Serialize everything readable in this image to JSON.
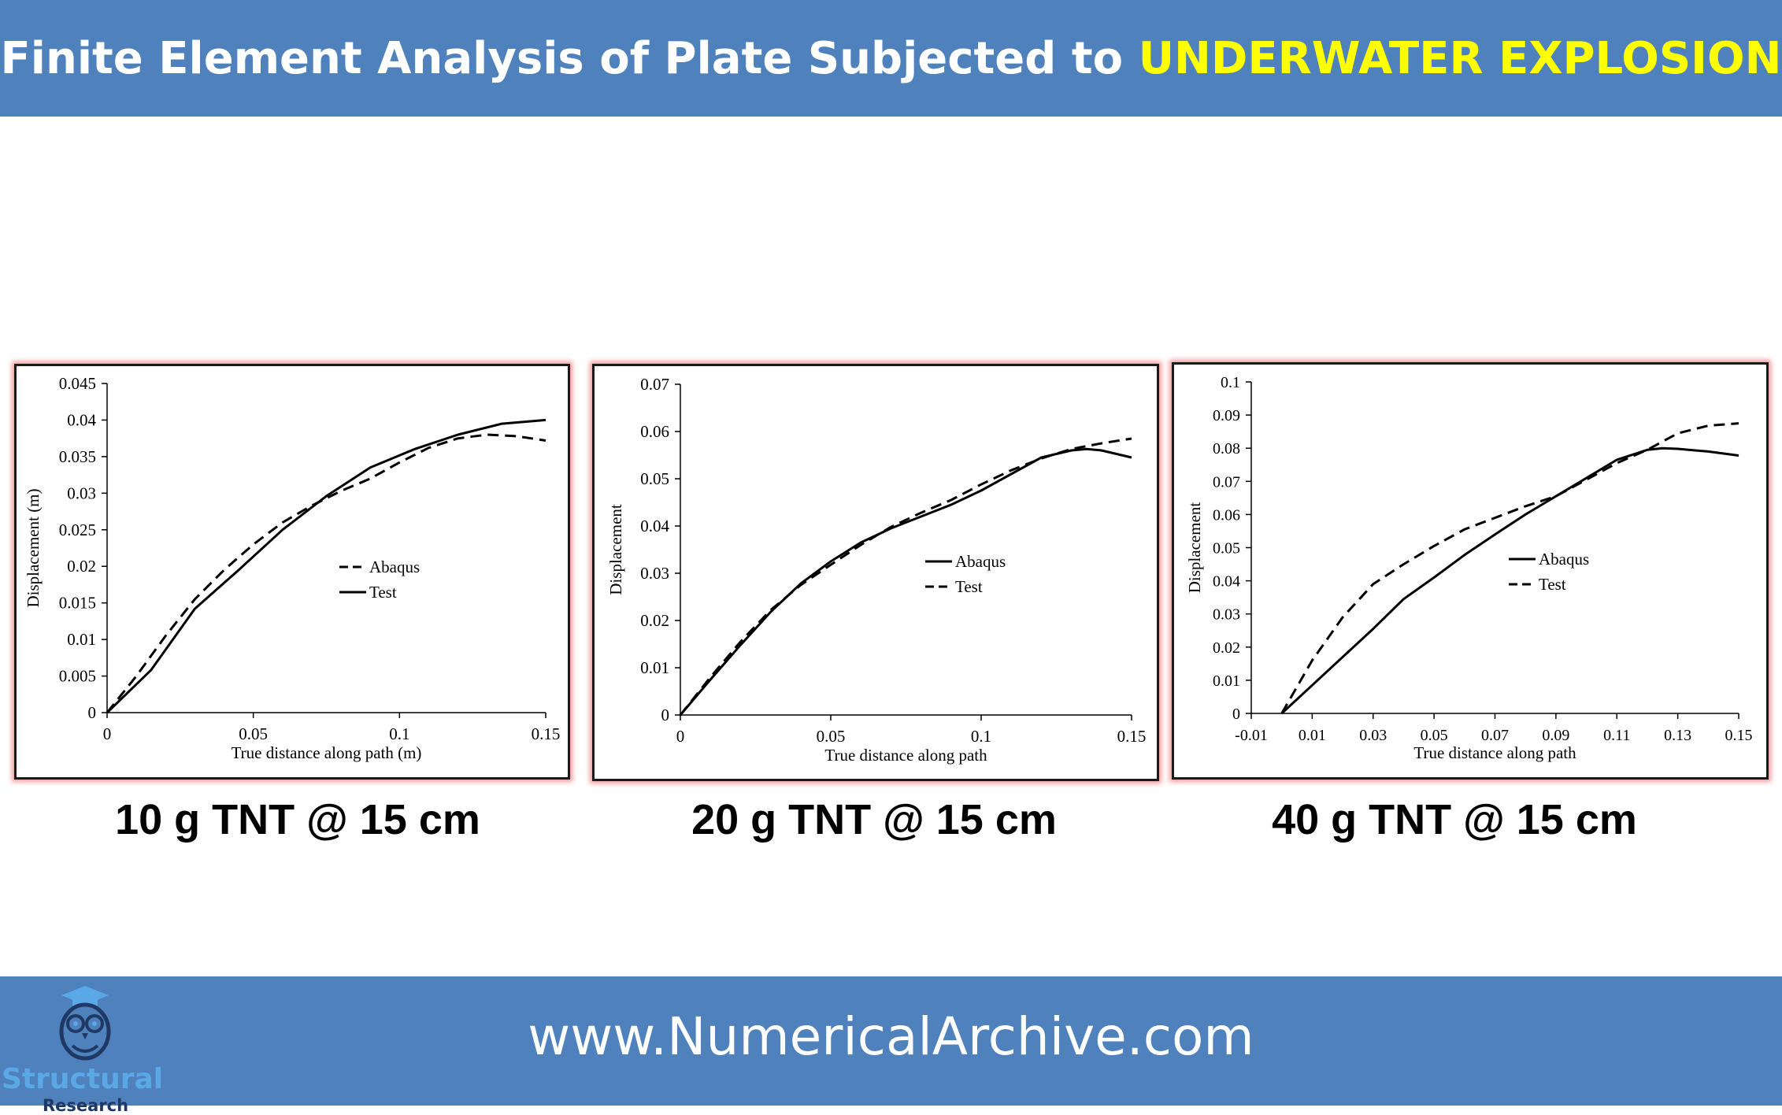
{
  "header": {
    "title_part1": "Finite Element Analysis of Plate Subjected to ",
    "title_part2": "UNDERWATER EXPLOSION",
    "bg_color": "#4f81bd",
    "highlight_color": "#ffff00"
  },
  "footer": {
    "url": "www.NumericalArchive.com",
    "logo_text": "Structural",
    "logo_subtext": "Research",
    "logo_icon": "owl-graduate-icon"
  },
  "captions": [
    "10 g TNT @ 15 cm",
    "20 g TNT @ 15 cm",
    "40 g TNT @ 15 cm"
  ],
  "chart_data": [
    {
      "type": "line",
      "title": "",
      "xlabel": "True distance along path (m)",
      "ylabel": "Displacement (m)",
      "xlim": [
        0,
        0.15
      ],
      "ylim": [
        0,
        0.045
      ],
      "xticks": [
        "0",
        "0.05",
        "0.1",
        "0.15"
      ],
      "xtick_values": [
        0,
        0.05,
        0.1,
        0.15
      ],
      "yticks": [
        "0",
        "0.005",
        "0.01",
        "0.015",
        "0.02",
        "0.025",
        "0.03",
        "0.035",
        "0.04",
        "0.045"
      ],
      "ytick_values": [
        0,
        0.005,
        0.01,
        0.015,
        0.02,
        0.025,
        0.03,
        0.035,
        0.04,
        0.045
      ],
      "legend_position": "right",
      "legend": [
        "Abaqus",
        "Test"
      ],
      "series": [
        {
          "name": "Abaqus",
          "style": "dashed",
          "x": [
            0,
            0.01,
            0.02,
            0.03,
            0.04,
            0.05,
            0.06,
            0.07,
            0.08,
            0.09,
            0.1,
            0.11,
            0.12,
            0.13,
            0.14,
            0.15
          ],
          "y": [
            0,
            0.005,
            0.0105,
            0.0155,
            0.0195,
            0.023,
            0.026,
            0.0283,
            0.0303,
            0.032,
            0.0342,
            0.0362,
            0.0375,
            0.038,
            0.0378,
            0.0372
          ]
        },
        {
          "name": "Test",
          "style": "solid",
          "x": [
            0,
            0.015,
            0.03,
            0.045,
            0.06,
            0.075,
            0.09,
            0.105,
            0.12,
            0.135,
            0.15
          ],
          "y": [
            0,
            0.0058,
            0.0142,
            0.0195,
            0.025,
            0.0296,
            0.0335,
            0.036,
            0.038,
            0.0395,
            0.04
          ]
        }
      ]
    },
    {
      "type": "line",
      "title": "",
      "xlabel": "True distance along path",
      "ylabel": "Displacement",
      "xlim": [
        0,
        0.15
      ],
      "ylim": [
        0,
        0.07
      ],
      "xticks": [
        "0",
        "0.05",
        "0.1",
        "0.15"
      ],
      "xtick_values": [
        0,
        0.05,
        0.1,
        0.15
      ],
      "yticks": [
        "0",
        "0.01",
        "0.02",
        "0.03",
        "0.04",
        "0.05",
        "0.06",
        "0.07"
      ],
      "ytick_values": [
        0,
        0.01,
        0.02,
        0.03,
        0.04,
        0.05,
        0.06,
        0.07
      ],
      "legend_position": "right",
      "legend": [
        "Abaqus",
        "Test"
      ],
      "series": [
        {
          "name": "Abaqus",
          "style": "solid",
          "x": [
            0,
            0.01,
            0.02,
            0.03,
            0.04,
            0.05,
            0.06,
            0.07,
            0.08,
            0.09,
            0.1,
            0.11,
            0.12,
            0.13,
            0.135,
            0.14,
            0.15
          ],
          "y": [
            0,
            0.0075,
            0.0148,
            0.0218,
            0.0278,
            0.0325,
            0.0365,
            0.0395,
            0.042,
            0.0445,
            0.0475,
            0.051,
            0.0545,
            0.056,
            0.0563,
            0.056,
            0.0545
          ]
        },
        {
          "name": "Test",
          "style": "dashed",
          "x": [
            0,
            0.01,
            0.02,
            0.03,
            0.04,
            0.05,
            0.06,
            0.07,
            0.08,
            0.09,
            0.1,
            0.11,
            0.12,
            0.13,
            0.14,
            0.15
          ],
          "y": [
            0,
            0.008,
            0.0155,
            0.0222,
            0.0275,
            0.0318,
            0.036,
            0.0398,
            0.0428,
            0.0455,
            0.0488,
            0.0518,
            0.0543,
            0.0563,
            0.0575,
            0.0585
          ]
        }
      ]
    },
    {
      "type": "line",
      "title": "",
      "xlabel": "True distance along path",
      "ylabel": "Displacement",
      "xlim": [
        -0.01,
        0.15
      ],
      "ylim": [
        0,
        0.1
      ],
      "xticks": [
        "-0.01",
        "0.01",
        "0.03",
        "0.05",
        "0.07",
        "0.09",
        "0.11",
        "0.13",
        "0.15"
      ],
      "xtick_values": [
        -0.01,
        0.01,
        0.03,
        0.05,
        0.07,
        0.09,
        0.11,
        0.13,
        0.15
      ],
      "yticks": [
        "0",
        "0.01",
        "0.02",
        "0.03",
        "0.04",
        "0.05",
        "0.06",
        "0.07",
        "0.08",
        "0.09",
        "0.1"
      ],
      "ytick_values": [
        0,
        0.01,
        0.02,
        0.03,
        0.04,
        0.05,
        0.06,
        0.07,
        0.08,
        0.09,
        0.1
      ],
      "legend_position": "right",
      "legend": [
        "Abaqus",
        "Test"
      ],
      "series": [
        {
          "name": "Abaqus",
          "style": "solid",
          "x": [
            0,
            0.01,
            0.02,
            0.03,
            0.04,
            0.05,
            0.06,
            0.07,
            0.08,
            0.09,
            0.1,
            0.11,
            0.12,
            0.125,
            0.13,
            0.14,
            0.15
          ],
          "y": [
            0,
            0.0085,
            0.017,
            0.0255,
            0.0345,
            0.041,
            0.0478,
            0.054,
            0.06,
            0.0655,
            0.071,
            0.0765,
            0.0795,
            0.08,
            0.0798,
            0.079,
            0.0778
          ]
        },
        {
          "name": "Test",
          "style": "dashed",
          "x": [
            0,
            0.01,
            0.02,
            0.03,
            0.04,
            0.05,
            0.06,
            0.07,
            0.08,
            0.09,
            0.1,
            0.11,
            0.12,
            0.13,
            0.14,
            0.15
          ],
          "y": [
            0,
            0.016,
            0.029,
            0.039,
            0.045,
            0.0505,
            0.0555,
            0.059,
            0.0625,
            0.0655,
            0.0705,
            0.0755,
            0.0795,
            0.0845,
            0.0868,
            0.0875
          ]
        }
      ]
    }
  ]
}
